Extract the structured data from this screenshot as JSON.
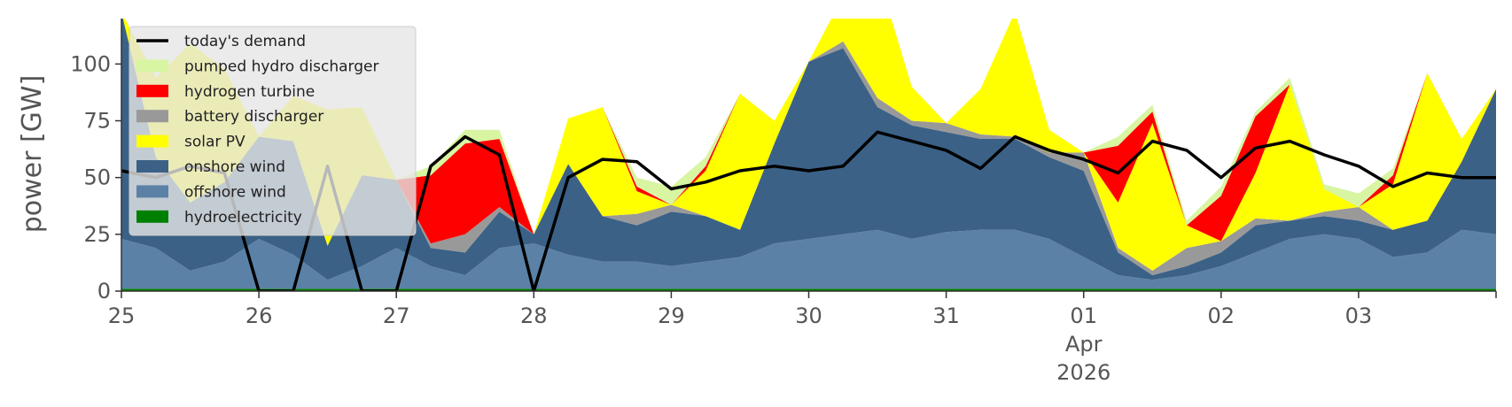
{
  "chart_data": {
    "type": "area",
    "ylabel": "power [GW]",
    "ylim": [
      0,
      120
    ],
    "xlim": [
      "2026-03-25",
      "2026-04-04"
    ],
    "grid": false,
    "legend_placement": "upper-left",
    "yticks": [
      0,
      25,
      50,
      75,
      100
    ],
    "xticks": [
      {
        "x": "2026-03-25",
        "label": "25",
        "sub": []
      },
      {
        "x": "2026-03-26",
        "label": "26",
        "sub": []
      },
      {
        "x": "2026-03-27",
        "label": "27",
        "sub": []
      },
      {
        "x": "2026-03-28",
        "label": "28",
        "sub": []
      },
      {
        "x": "2026-03-29",
        "label": "29",
        "sub": []
      },
      {
        "x": "2026-03-30",
        "label": "30",
        "sub": []
      },
      {
        "x": "2026-03-31",
        "label": "31",
        "sub": []
      },
      {
        "x": "2026-04-01",
        "label": "01",
        "sub": [
          "Apr",
          "2026"
        ]
      },
      {
        "x": "2026-04-02",
        "label": "02",
        "sub": []
      },
      {
        "x": "2026-04-03",
        "label": "03",
        "sub": []
      }
    ],
    "x": [
      "2026-03-25",
      "2026-03-25 06:00",
      "2026-03-25 12:00",
      "2026-03-25 18:00",
      "2026-03-26",
      "2026-03-26 06:00",
      "2026-03-26 12:00",
      "2026-03-26 18:00",
      "2026-03-27",
      "2026-03-27 06:00",
      "2026-03-27 12:00",
      "2026-03-27 18:00",
      "2026-03-28",
      "2026-03-28 06:00",
      "2026-03-28 12:00",
      "2026-03-28 18:00",
      "2026-03-29",
      "2026-03-29 06:00",
      "2026-03-29 12:00",
      "2026-03-29 18:00",
      "2026-03-30",
      "2026-03-30 06:00",
      "2026-03-30 12:00",
      "2026-03-30 18:00",
      "2026-03-31",
      "2026-03-31 06:00",
      "2026-03-31 12:00",
      "2026-03-31 18:00",
      "2026-04-01",
      "2026-04-01 06:00",
      "2026-04-01 12:00",
      "2026-04-01 18:00",
      "2026-04-02",
      "2026-04-02 06:00",
      "2026-04-02 12:00",
      "2026-04-02 18:00",
      "2026-04-03",
      "2026-04-03 06:00",
      "2026-04-03 12:00",
      "2026-04-03 18:00",
      "2026-04-04"
    ],
    "series": [
      {
        "name": "hydroelectricity",
        "color": "#008000",
        "values": [
          1,
          1,
          1,
          1,
          1,
          1,
          1,
          1,
          1,
          1,
          1,
          1,
          1,
          1,
          1,
          1,
          1,
          1,
          1,
          1,
          1,
          1,
          1,
          1,
          1,
          1,
          1,
          1,
          1,
          1,
          1,
          1,
          1,
          1,
          1,
          1,
          1,
          1,
          1,
          1,
          1
        ]
      },
      {
        "name": "offshore wind",
        "color": "#5b82a6",
        "values": [
          22,
          18,
          8,
          12,
          22,
          15,
          4,
          10,
          18,
          10,
          6,
          18,
          20,
          15,
          12,
          12,
          10,
          12,
          14,
          20,
          22,
          24,
          26,
          22,
          25,
          26,
          26,
          22,
          14,
          6,
          4,
          6,
          10,
          16,
          22,
          24,
          22,
          14,
          16,
          26,
          24
        ]
      },
      {
        "name": "onshore wind",
        "color": "#3b6186",
        "values": [
          100,
          40,
          30,
          35,
          45,
          50,
          15,
          40,
          30,
          8,
          10,
          16,
          4,
          40,
          20,
          16,
          24,
          20,
          12,
          44,
          78,
          82,
          54,
          50,
          44,
          40,
          40,
          36,
          38,
          10,
          2,
          4,
          6,
          12,
          8,
          8,
          8,
          12,
          14,
          30,
          64
        ]
      },
      {
        "name": "battery discharger",
        "color": "#999999",
        "values": [
          0,
          0,
          0,
          0,
          0,
          0,
          0,
          0,
          0,
          2,
          8,
          2,
          0,
          0,
          0,
          5,
          3,
          0,
          0,
          0,
          0,
          3,
          4,
          2,
          4,
          2,
          1,
          2,
          8,
          2,
          2,
          8,
          5,
          3,
          0,
          2,
          6,
          0,
          0,
          0,
          0
        ]
      },
      {
        "name": "solar PV",
        "color": "#ffff00",
        "values": [
          0,
          35,
          70,
          50,
          0,
          20,
          60,
          30,
          0,
          0,
          0,
          0,
          0,
          20,
          48,
          10,
          0,
          20,
          60,
          10,
          0,
          20,
          55,
          15,
          0,
          20,
          55,
          10,
          0,
          20,
          65,
          10,
          0,
          20,
          60,
          10,
          0,
          20,
          65,
          10,
          0
        ]
      },
      {
        "name": "hydrogen turbine",
        "color": "#ff0000",
        "values": [
          0,
          0,
          0,
          0,
          0,
          0,
          0,
          0,
          0,
          30,
          40,
          30,
          0,
          0,
          0,
          2,
          0,
          2,
          0,
          0,
          0,
          0,
          0,
          0,
          0,
          0,
          0,
          0,
          0,
          25,
          5,
          0,
          20,
          25,
          0,
          0,
          0,
          4,
          0,
          0,
          0
        ]
      },
      {
        "name": "pumped hydro discharger",
        "color": "#d8f5a2",
        "values": [
          0,
          0,
          0,
          0,
          0,
          0,
          0,
          0,
          0,
          4,
          6,
          4,
          0,
          0,
          0,
          4,
          8,
          4,
          0,
          0,
          0,
          0,
          0,
          0,
          0,
          0,
          0,
          0,
          0,
          4,
          3,
          2,
          4,
          2,
          3,
          2,
          6,
          3,
          0,
          0,
          0
        ]
      }
    ],
    "demand": {
      "name": "today's demand",
      "color": "#000000",
      "values": [
        53,
        50,
        55,
        52,
        0,
        0,
        55,
        0,
        0,
        55,
        68,
        60,
        0,
        50,
        58,
        57,
        45,
        48,
        53,
        55,
        53,
        55,
        70,
        66,
        62,
        54,
        68,
        62,
        58,
        52,
        66,
        62,
        50,
        63,
        66,
        60,
        55,
        46,
        52,
        50,
        50
      ]
    },
    "legend_order": [
      "today's demand",
      "pumped hydro discharger",
      "hydrogen turbine",
      "battery discharger",
      "solar PV",
      "onshore wind",
      "offshore wind",
      "hydroelectricity"
    ]
  }
}
